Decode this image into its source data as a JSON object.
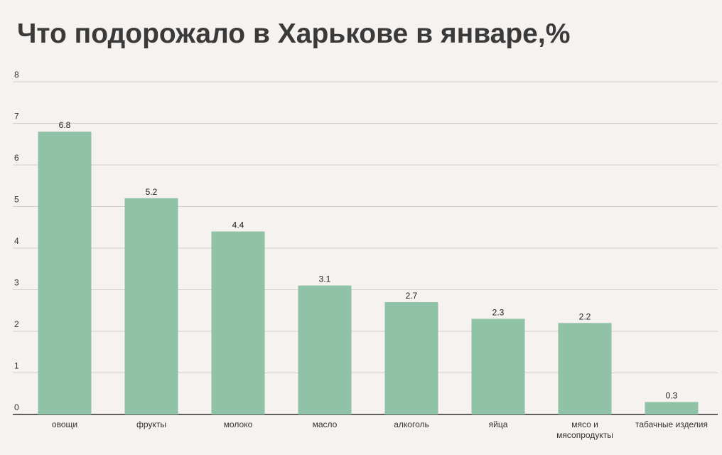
{
  "chart_data": {
    "type": "bar",
    "title": "Что подорожало в Харькове в январе,%",
    "xlabel": "",
    "ylabel": "",
    "categories": [
      "овощи",
      "фрукты",
      "молоко",
      "масло",
      "алкоголь",
      "яйца",
      "мясо и мясопродукты",
      "табачные изделия"
    ],
    "category_lines": [
      [
        "овощи"
      ],
      [
        "фрукты"
      ],
      [
        "молоко"
      ],
      [
        "масло"
      ],
      [
        "алкоголь"
      ],
      [
        "яйца"
      ],
      [
        "мясо и",
        "мясопродукты"
      ],
      [
        "табачные изделия"
      ]
    ],
    "values": [
      6.8,
      5.2,
      4.4,
      3.1,
      2.7,
      2.3,
      2.2,
      0.3
    ],
    "data_labels": [
      "6.8",
      "5.2",
      "4.4",
      "3.1",
      "2.7",
      "2.3",
      "2.2",
      "0.3"
    ],
    "ylim": [
      0,
      8
    ],
    "yticks": [
      0,
      1,
      2,
      3,
      4,
      5,
      6,
      7,
      8
    ],
    "grid": true,
    "legend": "none",
    "bar_color": "#8fc2a6"
  }
}
